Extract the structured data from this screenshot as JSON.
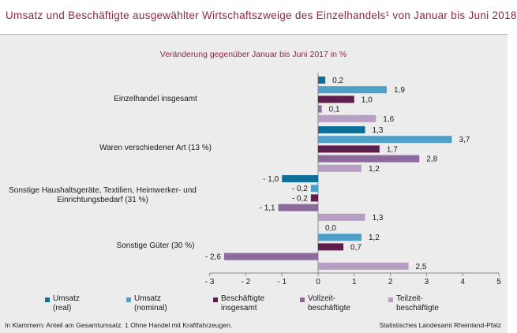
{
  "header": {
    "title": "Umsatz und Beschäftigte ausgewählter Wirtschaftszweige des Einzelhandels¹ von Januar bis Juni 2018"
  },
  "chart_data": {
    "type": "bar",
    "orientation": "horizontal",
    "subtitle": "Veränderung gegenüber Januar bis Juni 2017 in %",
    "categories": [
      [
        "Einzelhandel insgesamt"
      ],
      [
        "Waren verschiedener Art (13 %)"
      ],
      [
        "Sonstige Haushaltsgeräte, Textilien, Heimwerker- und",
        "Einrichtungsbedarf (31 %)"
      ],
      [
        "Sonstige Güter (30 %)"
      ]
    ],
    "series": [
      {
        "name": "Umsatz (real)",
        "legend_lines": [
          "Umsatz",
          "(real)"
        ],
        "color": "#0e6d99",
        "values": [
          0.2,
          1.3,
          -1.0,
          0.0
        ],
        "labels": [
          "0,2",
          "1,3",
          "- 1,0",
          "0,0"
        ]
      },
      {
        "name": "Umsatz (nominal)",
        "legend_lines": [
          "Umsatz",
          "(nominal)"
        ],
        "color": "#4ea0c8",
        "values": [
          1.9,
          3.7,
          -0.2,
          1.2
        ],
        "labels": [
          "1,9",
          "3,7",
          "- 0,2",
          "1,2"
        ]
      },
      {
        "name": "Beschäftigte insgesamt",
        "legend_lines": [
          "Beschäftigte",
          "insgesamt"
        ],
        "color": "#5e1f4c",
        "values": [
          1.0,
          1.7,
          -0.2,
          0.7
        ],
        "labels": [
          "1,0",
          "1,7",
          "- 0,2",
          "0,7"
        ]
      },
      {
        "name": "Vollzeitbeschäftigte",
        "legend_lines": [
          "Vollzeit-",
          "beschäftigte"
        ],
        "color": "#8c6a9c",
        "values": [
          0.1,
          2.8,
          -1.1,
          -2.6
        ],
        "labels": [
          "0,1",
          "2,8",
          "- 1,1",
          "- 2,6"
        ]
      },
      {
        "name": "Teilzeitbeschäftigte",
        "legend_lines": [
          "Teilzeit-",
          "beschäftigte"
        ],
        "color": "#b69fc2",
        "values": [
          1.6,
          1.2,
          1.3,
          2.5
        ],
        "labels": [
          "1,6",
          "1,2",
          "1,3",
          "2,5"
        ]
      }
    ],
    "x_ticks": [
      -3,
      -2,
      -1,
      0,
      1,
      2,
      3,
      4,
      5
    ],
    "x_tick_labels": [
      "- 3",
      "- 2",
      "- 1",
      "0",
      "1",
      "2",
      "3",
      "4",
      "5"
    ],
    "xlim": [
      -3,
      5
    ],
    "grid": false,
    "legend_position": "bottom"
  },
  "footer": {
    "footnote": "In Klammern: Anteil am Gesamtumsatz. 1 Ohne Handel mit Kraftfahrzeugen.",
    "source": "Statistisches Landesamt Rheinland-Pfalz"
  }
}
